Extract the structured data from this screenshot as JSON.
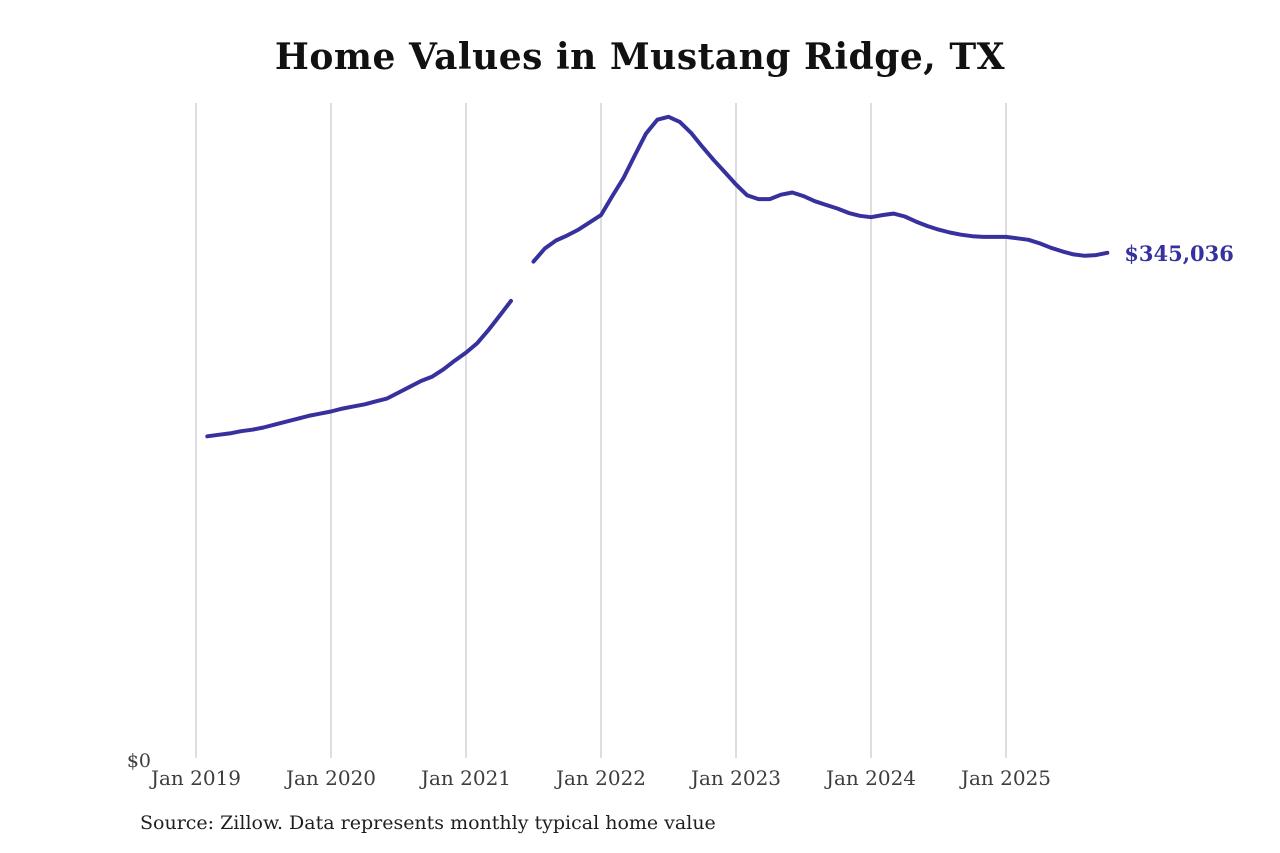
{
  "chart_data": {
    "type": "line",
    "title": "Home Values in Mustang Ridge, TX",
    "source_note": "Source: Zillow. Data represents monthly typical home value",
    "y_axis_zero_label": "$0",
    "end_value_label": "$345,036",
    "final_value": 345036,
    "line_color": "#37319e",
    "grid_color": "#c9c9c9",
    "label_color": "#3d3d3d",
    "title_color": "#111111",
    "ylim": [
      0,
      448000
    ],
    "grid": "vertical-only",
    "legend": "none",
    "x_ticks": [
      {
        "label": "Jan 2019",
        "date": "2019-01"
      },
      {
        "label": "Jan 2020",
        "date": "2020-01"
      },
      {
        "label": "Jan 2021",
        "date": "2021-01"
      },
      {
        "label": "Jan 2022",
        "date": "2022-01"
      },
      {
        "label": "Jan 2023",
        "date": "2023-01"
      },
      {
        "label": "Jan 2024",
        "date": "2024-01"
      },
      {
        "label": "Jan 2025",
        "date": "2025-01"
      }
    ],
    "series": [
      {
        "name": "Monthly typical home value",
        "points": [
          [
            "2019-02",
            219000
          ],
          [
            "2019-03",
            220000
          ],
          [
            "2019-04",
            221000
          ],
          [
            "2019-05",
            222500
          ],
          [
            "2019-06",
            223500
          ],
          [
            "2019-07",
            225000
          ],
          [
            "2019-08",
            227000
          ],
          [
            "2019-09",
            229000
          ],
          [
            "2019-10",
            231000
          ],
          [
            "2019-11",
            233000
          ],
          [
            "2019-12",
            234500
          ],
          [
            "2020-01",
            236000
          ],
          [
            "2020-02",
            238000
          ],
          [
            "2020-03",
            239500
          ],
          [
            "2020-04",
            241000
          ],
          [
            "2020-05",
            243000
          ],
          [
            "2020-06",
            245000
          ],
          [
            "2020-07",
            249000
          ],
          [
            "2020-08",
            253000
          ],
          [
            "2020-09",
            257000
          ],
          [
            "2020-10",
            260000
          ],
          [
            "2020-11",
            265000
          ],
          [
            "2020-12",
            271000
          ],
          [
            "2021-01",
            276500
          ],
          [
            "2021-02",
            283000
          ],
          [
            "2021-03",
            292000
          ],
          [
            "2021-04",
            302000
          ],
          [
            "2021-05",
            312000
          ],
          [
            "2021-06",
            null
          ],
          [
            "2021-07",
            339000
          ],
          [
            "2021-08",
            348000
          ],
          [
            "2021-09",
            353500
          ],
          [
            "2021-10",
            357000
          ],
          [
            "2021-11",
            361000
          ],
          [
            "2021-12",
            366000
          ],
          [
            "2022-01",
            371000
          ],
          [
            "2022-02",
            384000
          ],
          [
            "2022-03",
            396500
          ],
          [
            "2022-04",
            412000
          ],
          [
            "2022-05",
            427000
          ],
          [
            "2022-06",
            436500
          ],
          [
            "2022-07",
            438500
          ],
          [
            "2022-08",
            435000
          ],
          [
            "2022-09",
            427500
          ],
          [
            "2022-10",
            418000
          ],
          [
            "2022-11",
            409000
          ],
          [
            "2022-12",
            400500
          ],
          [
            "2023-01",
            392000
          ],
          [
            "2023-02",
            384500
          ],
          [
            "2023-03",
            382000
          ],
          [
            "2023-04",
            382000
          ],
          [
            "2023-05",
            385000
          ],
          [
            "2023-06",
            386500
          ],
          [
            "2023-07",
            384000
          ],
          [
            "2023-08",
            380500
          ],
          [
            "2023-09",
            378000
          ],
          [
            "2023-10",
            375500
          ],
          [
            "2023-11",
            372500
          ],
          [
            "2023-12",
            370500
          ],
          [
            "2024-01",
            369500
          ],
          [
            "2024-02",
            371000
          ],
          [
            "2024-03",
            372000
          ],
          [
            "2024-04",
            370000
          ],
          [
            "2024-05",
            366500
          ],
          [
            "2024-06",
            363500
          ],
          [
            "2024-07",
            361000
          ],
          [
            "2024-08",
            359000
          ],
          [
            "2024-09",
            357500
          ],
          [
            "2024-10",
            356500
          ],
          [
            "2024-11",
            356000
          ],
          [
            "2024-12",
            356000
          ],
          [
            "2025-01",
            356000
          ],
          [
            "2025-02",
            355000
          ],
          [
            "2025-03",
            354000
          ],
          [
            "2025-04",
            351500
          ],
          [
            "2025-05",
            348500
          ],
          [
            "2025-06",
            346000
          ],
          [
            "2025-07",
            344000
          ],
          [
            "2025-08",
            343000
          ],
          [
            "2025-09",
            343500
          ],
          [
            "2025-10",
            345036
          ]
        ]
      }
    ]
  }
}
